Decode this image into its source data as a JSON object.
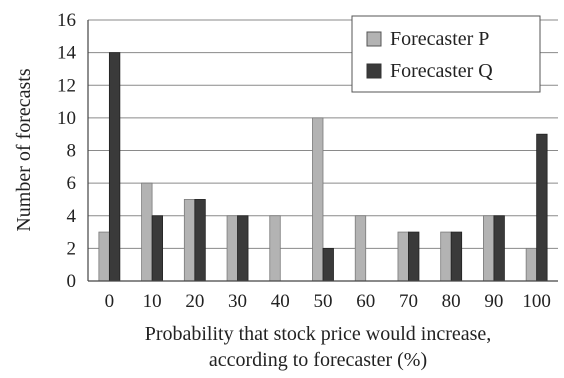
{
  "chart_data": {
    "type": "bar",
    "categories": [
      "0",
      "10",
      "20",
      "30",
      "40",
      "50",
      "60",
      "70",
      "80",
      "90",
      "100"
    ],
    "series": [
      {
        "name": "Forecaster P",
        "values": [
          3,
          6,
          5,
          4,
          4,
          10,
          4,
          3,
          3,
          4,
          2
        ],
        "color": "#b3b3b3"
      },
      {
        "name": "Forecaster Q",
        "values": [
          14,
          4,
          5,
          4,
          0,
          2,
          0,
          3,
          3,
          4,
          9
        ],
        "color": "#3a3a3a"
      }
    ],
    "yticks": [
      "0",
      "2",
      "4",
      "6",
      "8",
      "10",
      "12",
      "14",
      "16"
    ],
    "ylim": [
      0,
      16
    ],
    "xlabel_line1": "Probability that stock price would increase,",
    "xlabel_line2": "according to forecaster (%)",
    "ylabel": "Number of forecasts",
    "grid": "horizontal",
    "legend_position": "top-right"
  }
}
